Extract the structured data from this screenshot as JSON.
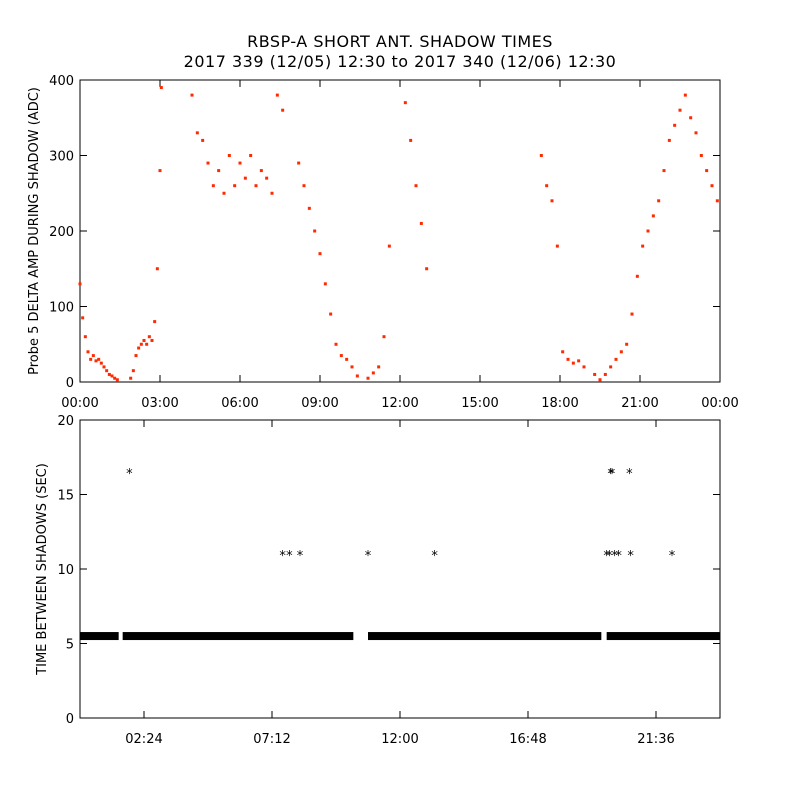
{
  "title_line1": "RBSP-A SHORT ANT. SHADOW TIMES",
  "title_line2": "2017 339 (12/05) 12:30 to 2017 340 (12/06) 12:30",
  "chart_data": [
    {
      "type": "scatter",
      "ylabel": "Probe 5 DELTA AMP DURING SHADOW (ADC)",
      "xlabel": "",
      "color": "#ff2a00",
      "x_unit": "hours",
      "xlim": [
        0,
        24
      ],
      "ylim": [
        0,
        400
      ],
      "xtick_labels": [
        "00:00",
        "03:00",
        "06:00",
        "09:00",
        "12:00",
        "15:00",
        "18:00",
        "21:00",
        "00:00"
      ],
      "xtick_values": [
        0,
        3,
        6,
        9,
        12,
        15,
        18,
        21,
        24
      ],
      "ytick_labels": [
        "0",
        "100",
        "200",
        "300",
        "400"
      ],
      "ytick_values": [
        0,
        100,
        200,
        300,
        400
      ],
      "x": [
        0.0,
        0.1,
        0.2,
        0.3,
        0.4,
        0.5,
        0.6,
        0.7,
        0.8,
        0.9,
        1.0,
        1.1,
        1.2,
        1.3,
        1.4,
        1.9,
        2.0,
        2.1,
        2.2,
        2.3,
        2.4,
        2.5,
        2.6,
        2.7,
        2.8,
        2.9,
        3.0,
        3.05,
        4.2,
        4.4,
        4.6,
        4.8,
        5.0,
        5.2,
        5.4,
        5.6,
        5.8,
        6.0,
        6.2,
        6.4,
        6.6,
        6.8,
        7.0,
        7.2,
        7.4,
        7.6,
        8.2,
        8.4,
        8.6,
        8.8,
        9.0,
        9.2,
        9.4,
        9.6,
        9.8,
        10.0,
        10.2,
        10.4,
        10.8,
        11.0,
        11.2,
        11.4,
        11.6,
        12.2,
        12.4,
        12.6,
        12.8,
        13.0,
        17.3,
        17.5,
        17.7,
        17.9,
        18.1,
        18.3,
        18.5,
        18.7,
        18.9,
        19.3,
        19.5,
        19.7,
        19.9,
        20.1,
        20.3,
        20.5,
        20.7,
        20.9,
        21.1,
        21.3,
        21.5,
        21.7,
        21.9,
        22.1,
        22.3,
        22.5,
        22.7,
        22.9,
        23.1,
        23.3,
        23.5,
        23.7,
        23.9
      ],
      "y": [
        130,
        85,
        60,
        40,
        30,
        35,
        28,
        30,
        25,
        20,
        15,
        10,
        8,
        5,
        3,
        5,
        15,
        35,
        45,
        50,
        55,
        50,
        60,
        55,
        80,
        150,
        280,
        390,
        380,
        330,
        320,
        290,
        260,
        280,
        250,
        300,
        260,
        290,
        270,
        300,
        260,
        280,
        270,
        250,
        380,
        360,
        290,
        260,
        230,
        200,
        170,
        130,
        90,
        50,
        35,
        30,
        20,
        8,
        5,
        12,
        20,
        60,
        180,
        370,
        320,
        260,
        210,
        150,
        300,
        260,
        240,
        180,
        40,
        30,
        25,
        28,
        20,
        10,
        3,
        10,
        20,
        30,
        40,
        50,
        90,
        140,
        180,
        200,
        220,
        240,
        280,
        320,
        340,
        360,
        380,
        350,
        330,
        300,
        280,
        260,
        240
      ]
    },
    {
      "type": "scatter",
      "ylabel": "TIME BETWEEN SHADOWS (SEC)",
      "xlabel": "",
      "color": "#000000",
      "marker": "*",
      "x_unit": "hours",
      "xlim": [
        0,
        24
      ],
      "ylim": [
        0,
        20
      ],
      "xtick_labels": [
        "02:24",
        "07:12",
        "12:00",
        "16:48",
        "21:36"
      ],
      "xtick_values": [
        2.4,
        7.2,
        12.0,
        16.8,
        21.6
      ],
      "ytick_labels": [
        "0",
        "5",
        "10",
        "15",
        "20"
      ],
      "ytick_values": [
        0,
        5,
        10,
        15,
        20
      ],
      "baseline_value": 5.5,
      "baseline_gaps": [
        [
          1.45,
          1.6
        ],
        [
          10.25,
          10.8
        ],
        [
          19.55,
          19.75
        ]
      ],
      "baseline_segments": [
        [
          0.0,
          1.45
        ],
        [
          1.6,
          10.25
        ],
        [
          10.8,
          19.55
        ],
        [
          19.75,
          24.0
        ]
      ],
      "x": [
        1.85,
        7.6,
        7.85,
        8.25,
        10.8,
        13.3,
        19.75,
        19.85,
        19.9,
        19.95,
        20.05,
        20.2,
        20.6,
        20.65,
        22.2
      ],
      "y": [
        16.5,
        11.0,
        11.0,
        11.0,
        11.0,
        11.0,
        11.0,
        11.0,
        16.5,
        16.5,
        11.0,
        11.0,
        16.5,
        11.0,
        11.0
      ]
    }
  ]
}
